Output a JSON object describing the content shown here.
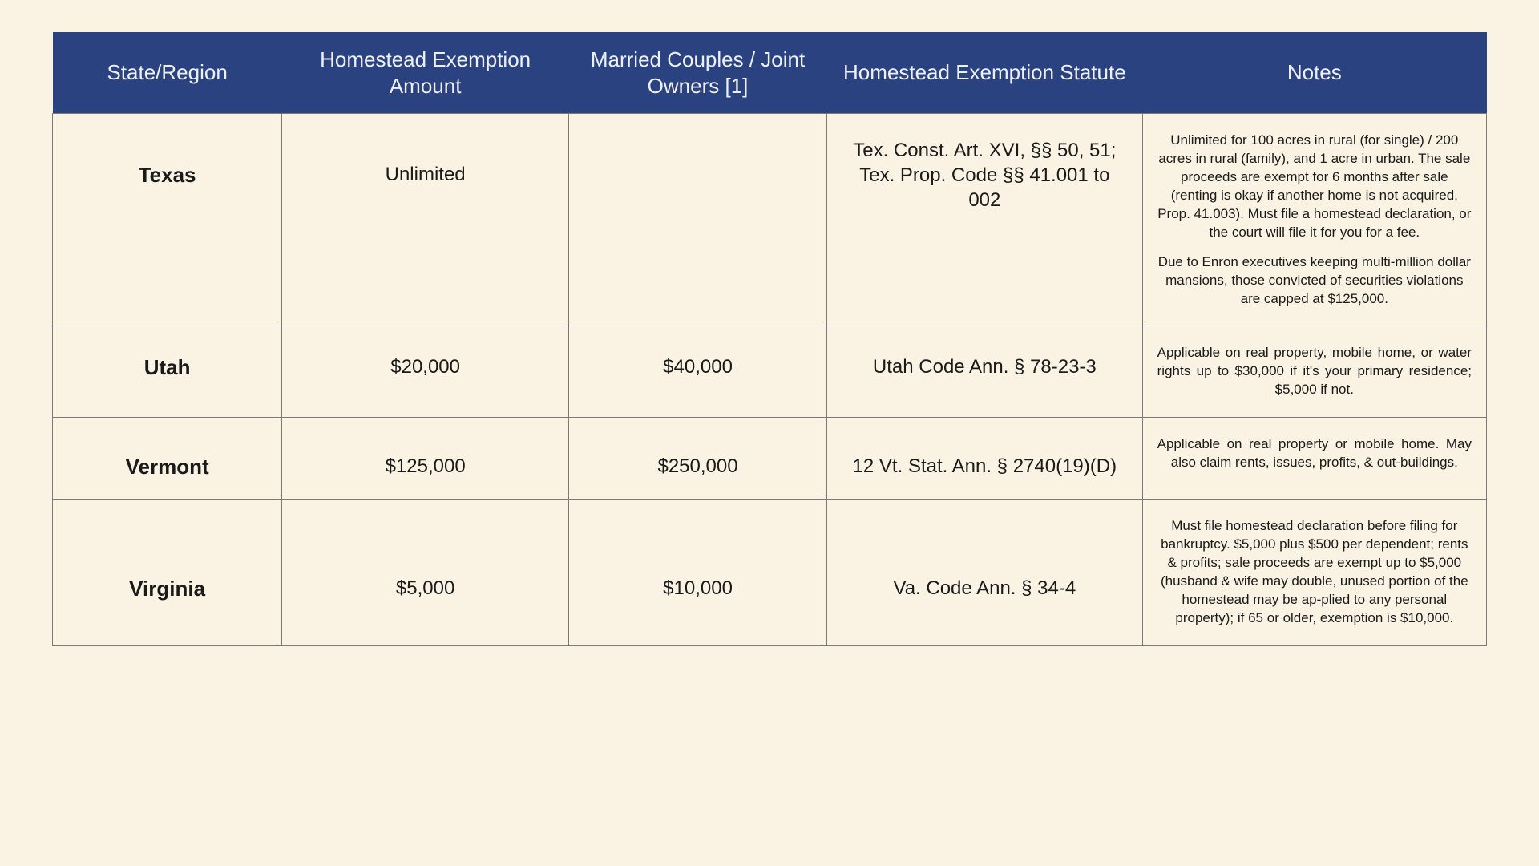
{
  "table": {
    "header_bg": "#2a4380",
    "header_fg": "#eef0f5",
    "page_bg": "#faf3e3",
    "border_color": "#7a7a7a",
    "columns": [
      "State/Region",
      "Homestead Exemption Amount",
      "Married Couples / Joint Owners [1]",
      "Homestead Exemption Statute",
      "Notes"
    ],
    "rows": [
      {
        "state": "Texas",
        "amount": "Unlimited",
        "joint": "",
        "statute": "Tex. Const. Art. XVI, §§ 50, 51; Tex. Prop. Code §§ 41.001 to 002",
        "notes": [
          "Unlimited for 100 acres in rural (for single) / 200 acres in rural (family), and 1 acre in urban. The sale proceeds are exempt for 6 months after sale (renting is okay if another home is not acquired, Prop. 41.003). Must file a homestead declaration, or the court will file it for you for a fee.",
          "Due to Enron executives keeping multi-million dollar mansions, those convicted of securities violations are capped at $125,000."
        ]
      },
      {
        "state": "Utah",
        "amount": "$20,000",
        "joint": "$40,000",
        "statute": "Utah Code Ann. § 78-23-3",
        "notes": [
          "Applicable on real property, mobile home, or water rights up to $30,000 if it's your primary residence; $5,000 if not."
        ]
      },
      {
        "state": "Vermont",
        "amount": "$125,000",
        "joint": "$250,000",
        "statute": "12 Vt. Stat. Ann. § 2740(19)(D)",
        "notes": [
          "Applicable on real property or mobile home. May also claim rents, issues, profits, & out-buildings."
        ],
        "notes_justify": true
      },
      {
        "state": "Virginia",
        "amount": "$5,000",
        "joint": "$10,000",
        "statute": "Va. Code Ann. § 34-4",
        "notes": [
          "Must file homestead declaration before filing for bankruptcy. $5,000 plus $500 per dependent; rents & profits; sale proceeds are exempt up to $5,000 (husband & wife may double, unused portion of the homestead may be ap-plied to any personal property); if 65 or older, exemption is $10,000."
        ]
      }
    ]
  }
}
